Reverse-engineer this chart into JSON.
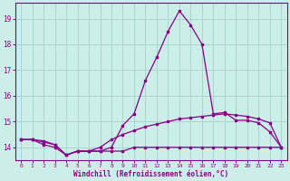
{
  "xlabel": "Windchill (Refroidissement éolien,°C)",
  "bg_color": "#cceee8",
  "grid_color": "#aad4ce",
  "line_color": "#880088",
  "x_values": [
    0,
    1,
    2,
    3,
    4,
    5,
    6,
    7,
    8,
    9,
    10,
    11,
    12,
    13,
    14,
    15,
    16,
    17,
    18,
    19,
    20,
    21,
    22,
    23
  ],
  "line1_y": [
    14.3,
    14.3,
    14.1,
    14.0,
    13.7,
    13.85,
    13.85,
    13.85,
    13.85,
    13.85,
    14.0,
    14.0,
    14.0,
    14.0,
    14.0,
    14.0,
    14.0,
    14.0,
    14.0,
    14.0,
    14.0,
    14.0,
    14.0,
    14.0
  ],
  "line2_y": [
    14.3,
    14.3,
    14.25,
    14.1,
    13.7,
    13.85,
    13.85,
    14.0,
    14.3,
    14.5,
    14.65,
    14.8,
    14.9,
    15.0,
    15.1,
    15.15,
    15.2,
    15.25,
    15.3,
    15.25,
    15.2,
    15.1,
    14.95,
    14.0
  ],
  "line3_y": [
    14.3,
    14.3,
    14.2,
    14.1,
    13.7,
    13.85,
    13.85,
    13.85,
    14.0,
    14.85,
    15.3,
    16.6,
    17.5,
    18.5,
    19.3,
    18.75,
    18.0,
    15.3,
    15.35,
    15.05,
    15.05,
    14.95,
    14.6,
    14.0
  ],
  "xlim": [
    -0.5,
    23.5
  ],
  "ylim": [
    13.5,
    19.6
  ],
  "yticks": [
    14,
    15,
    16,
    17,
    18,
    19
  ],
  "xticks": [
    0,
    1,
    2,
    3,
    4,
    5,
    6,
    7,
    8,
    9,
    10,
    11,
    12,
    13,
    14,
    15,
    16,
    17,
    18,
    19,
    20,
    21,
    22,
    23
  ]
}
